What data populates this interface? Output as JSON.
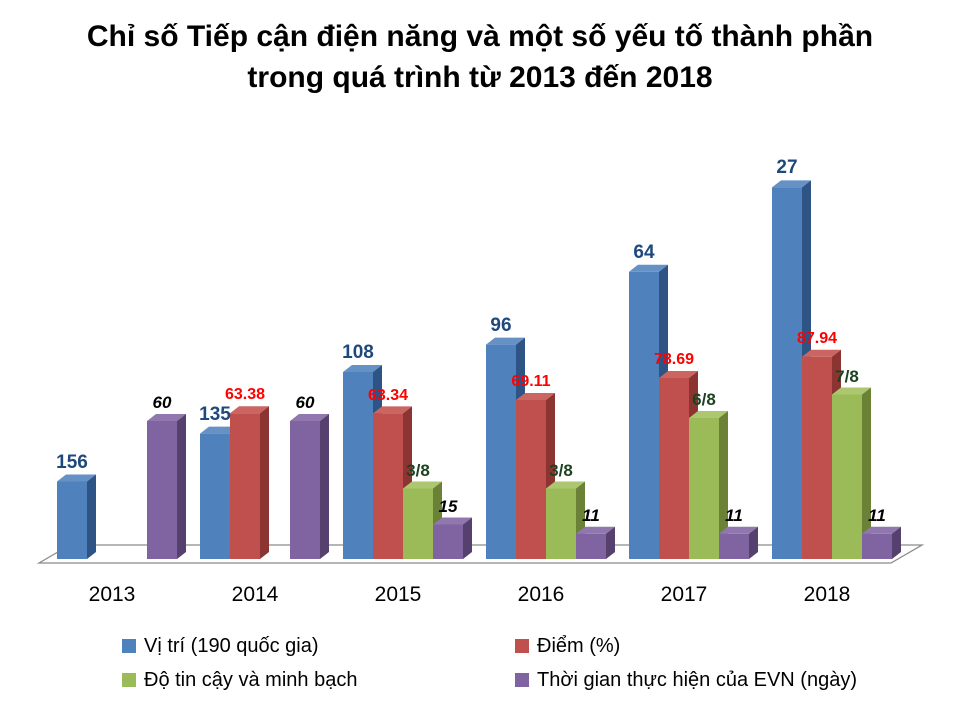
{
  "title": {
    "line1": "Chỉ số Tiếp cận điện năng và một số yếu tố thành phần",
    "line2": "trong quá trình từ 2013 đến 2018"
  },
  "chart_data": {
    "type": "bar",
    "style": "3d-clustered-column",
    "title": "Chỉ số Tiếp cận điện năng và một số yếu tố thành phần trong quá trình từ 2013 đến 2018",
    "categories": [
      "2013",
      "2014",
      "2015",
      "2016",
      "2017",
      "2018"
    ],
    "series": [
      {
        "id": "vi-tri",
        "name": "Vị trí (190 quốc gia)",
        "color": "#4F81BD",
        "color_top": "#6591C5",
        "color_side": "#2E5385",
        "label_color": "#1F497D",
        "rank_axis_inverted": true,
        "rank_out_of": 190,
        "values": [
          156,
          135,
          108,
          96,
          64,
          27
        ],
        "labels": [
          "156",
          "135",
          "108",
          "96",
          "64",
          "27"
        ]
      },
      {
        "id": "diem",
        "name": "Điểm (%)",
        "color": "#C0504D",
        "color_top": "#CB6562",
        "color_side": "#8C3431",
        "label_color": "#FF0000",
        "values": [
          null,
          63.38,
          63.34,
          69.11,
          78.69,
          87.94
        ],
        "labels": [
          "",
          "63.38",
          "63.34",
          "69.11",
          "78.69",
          "87.94"
        ]
      },
      {
        "id": "do-tin-cay",
        "name": "Độ tin cậy và minh bạch",
        "color": "#9BBB59",
        "color_top": "#ACC76F",
        "color_side": "#6B8136",
        "label_color": "#1C4220",
        "values": [
          null,
          null,
          3,
          3,
          6,
          7
        ],
        "labels": [
          "",
          "",
          "3/8",
          "3/8",
          "6/8",
          "7/8"
        ]
      },
      {
        "id": "thoi-gian",
        "name": "Thời gian thực hiện của EVN (ngày)",
        "color": "#8064A2",
        "color_top": "#9078AF",
        "color_side": "#55406E",
        "label_color": "#000000",
        "label_style": "italic",
        "values": [
          60,
          60,
          15,
          11,
          11,
          11
        ],
        "labels": [
          "60",
          "60",
          "15",
          "11",
          "11",
          "11"
        ]
      }
    ],
    "value_axis_visible": false,
    "grid": false,
    "legend_position": "bottom",
    "background": "#FFFFFF",
    "floor_line_color": "#8A8A8A"
  }
}
